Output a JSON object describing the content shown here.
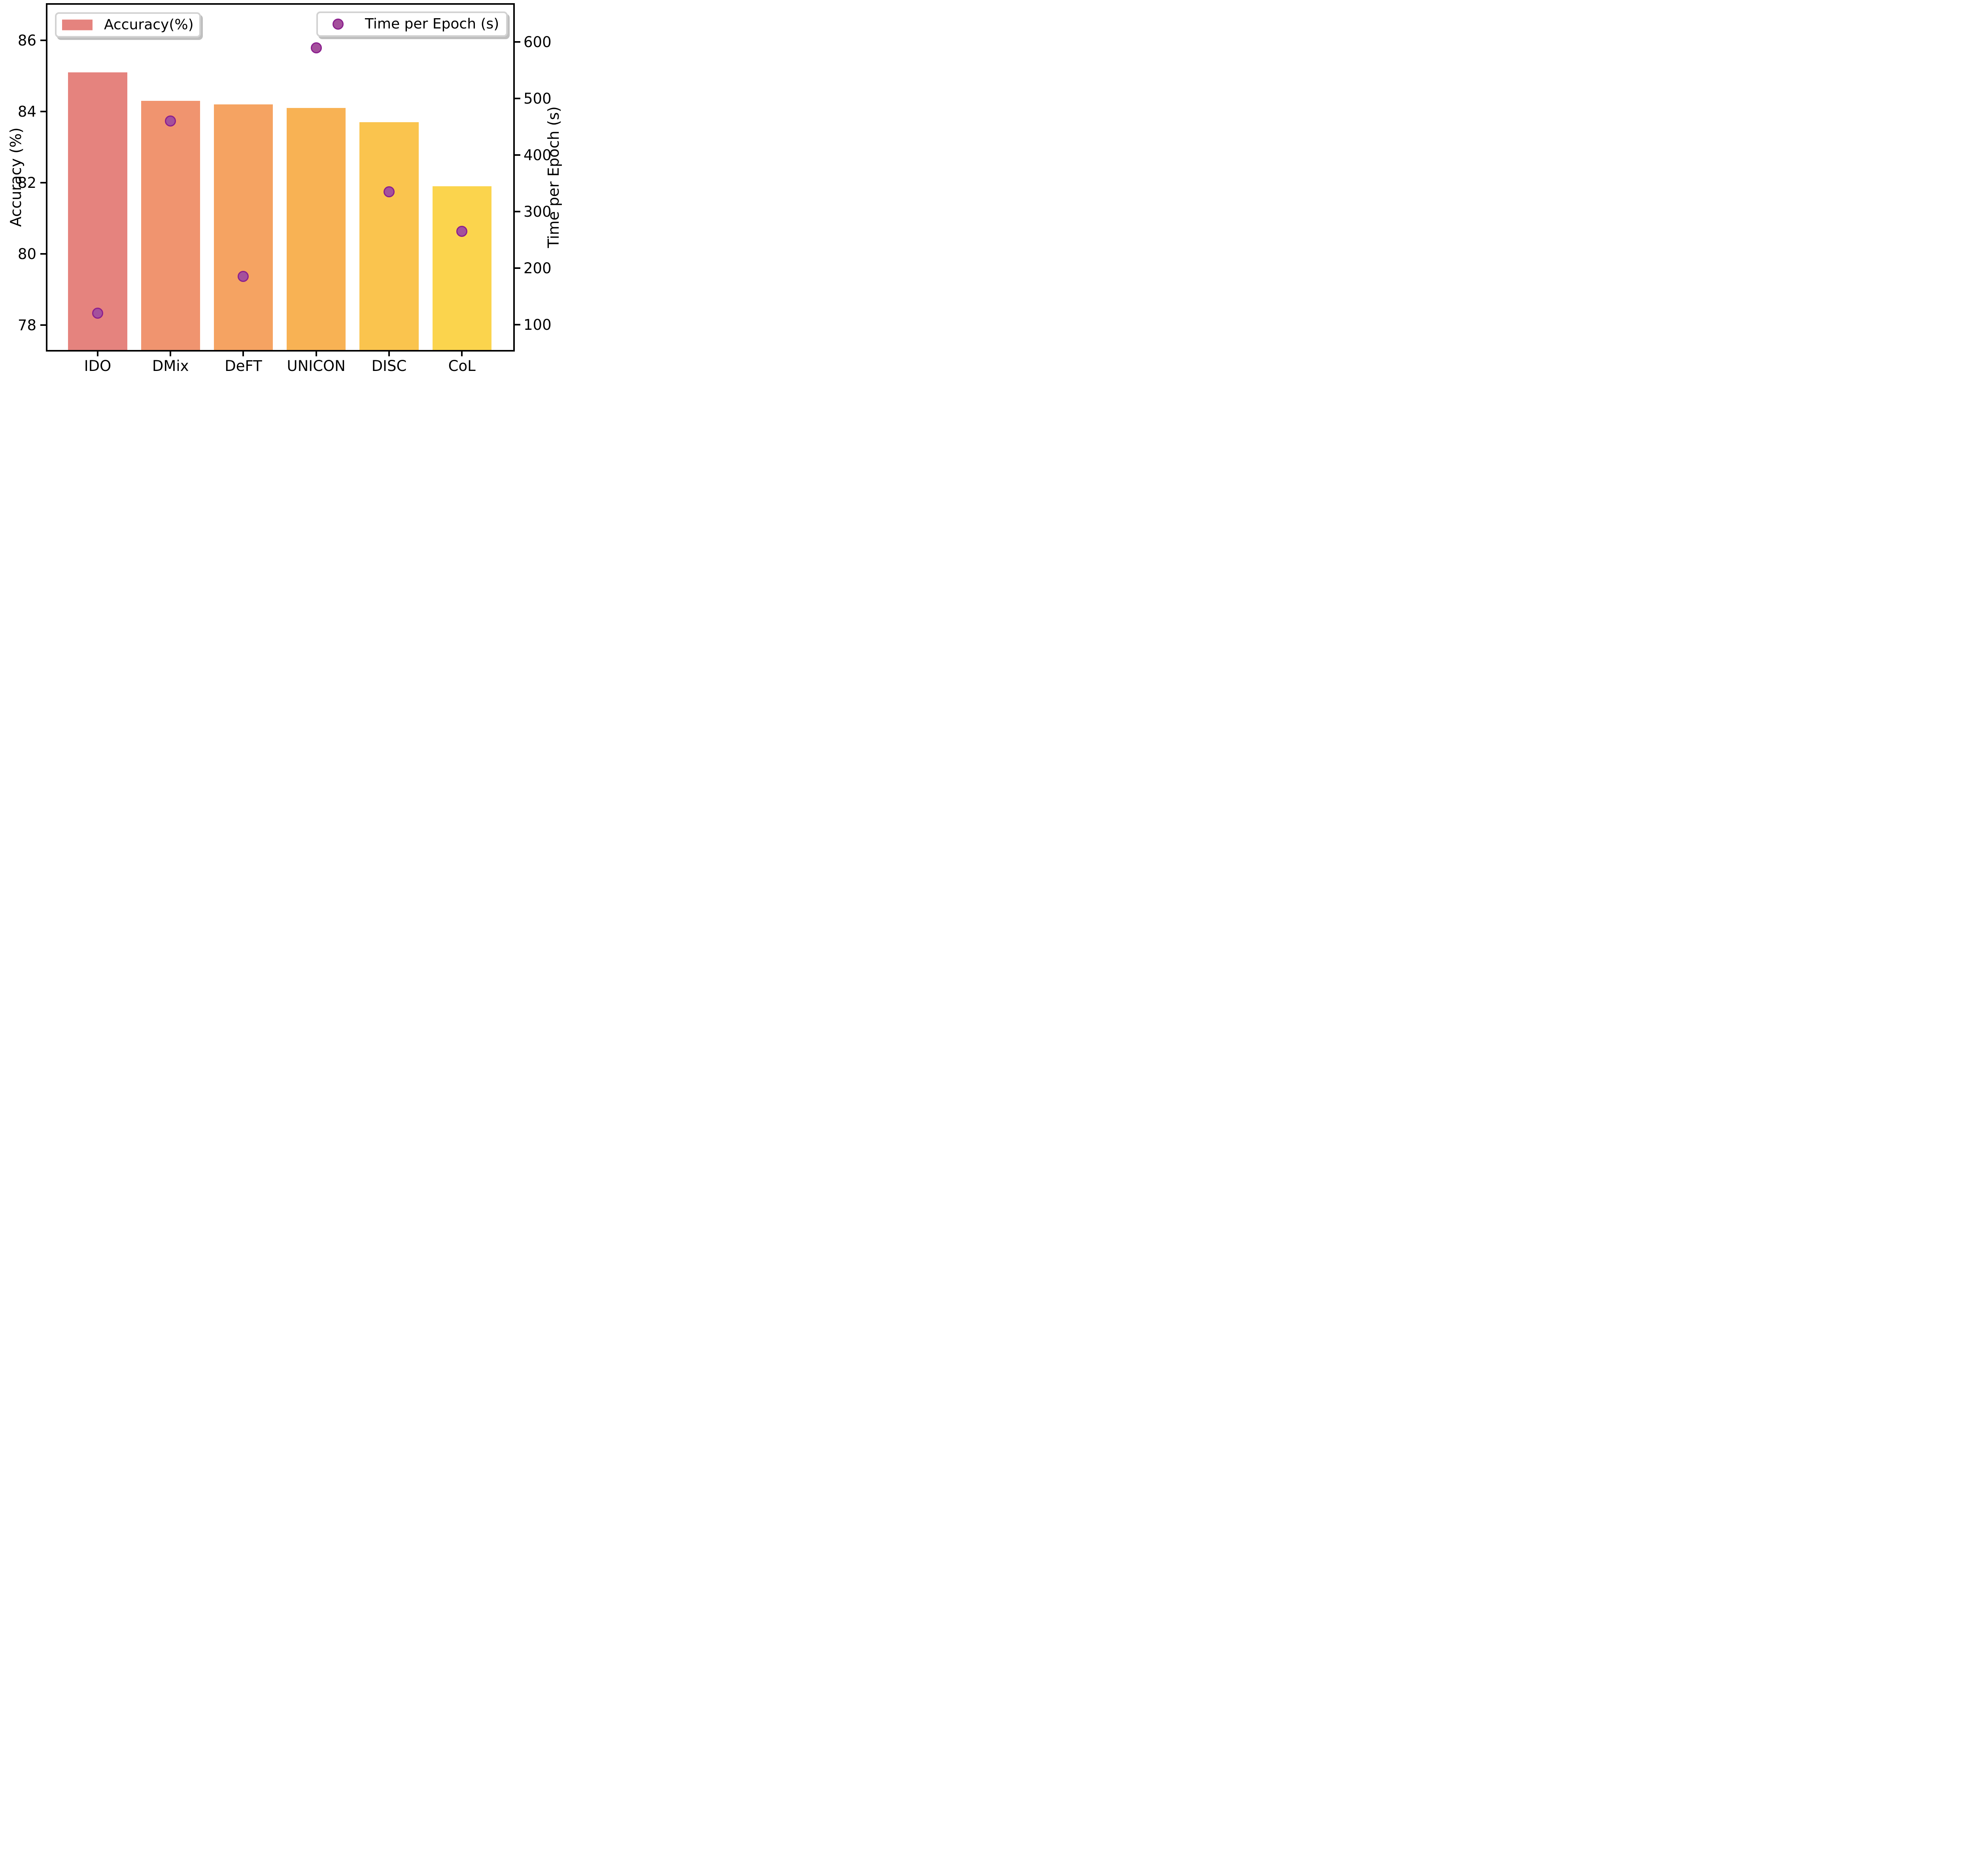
{
  "chart_data": {
    "type": "bar",
    "title": "",
    "categories": [
      "IDO",
      "DMix",
      "DeFT",
      "UNICON",
      "DISC",
      "CoL"
    ],
    "series": [
      {
        "name": "Accuracy(%)",
        "type": "bar",
        "axis": "left",
        "values": [
          85.1,
          84.3,
          84.2,
          84.1,
          83.7,
          81.9
        ],
        "bar_colors": [
          "#e5837e",
          "#f0946f",
          "#f5a362",
          "#f8b254",
          "#fac44e",
          "#fbd44d"
        ]
      },
      {
        "name": "Time per Epoch (s)",
        "type": "scatter",
        "axis": "right",
        "values": [
          120,
          460,
          185,
          590,
          335,
          265
        ],
        "marker_color": "#a4509c",
        "marker_edge_color": "#8b1f8e"
      }
    ],
    "left_axis": {
      "label": "Accuracy (%)",
      "ticks": [
        78,
        80,
        82,
        84,
        86
      ],
      "range": [
        77.3,
        87.0
      ]
    },
    "right_axis": {
      "label": "Time per Epoch (s)",
      "ticks": [
        100,
        200,
        300,
        400,
        500,
        600
      ],
      "range": [
        55,
        666
      ]
    },
    "legend": {
      "entries": [
        {
          "label": "Accuracy(%)",
          "marker": "patch"
        },
        {
          "label": "Time per Epoch (s)",
          "marker": "circle"
        }
      ],
      "position": "top-inside"
    },
    "grid": false,
    "background": "#ffffff",
    "spine_color": "#000000"
  }
}
